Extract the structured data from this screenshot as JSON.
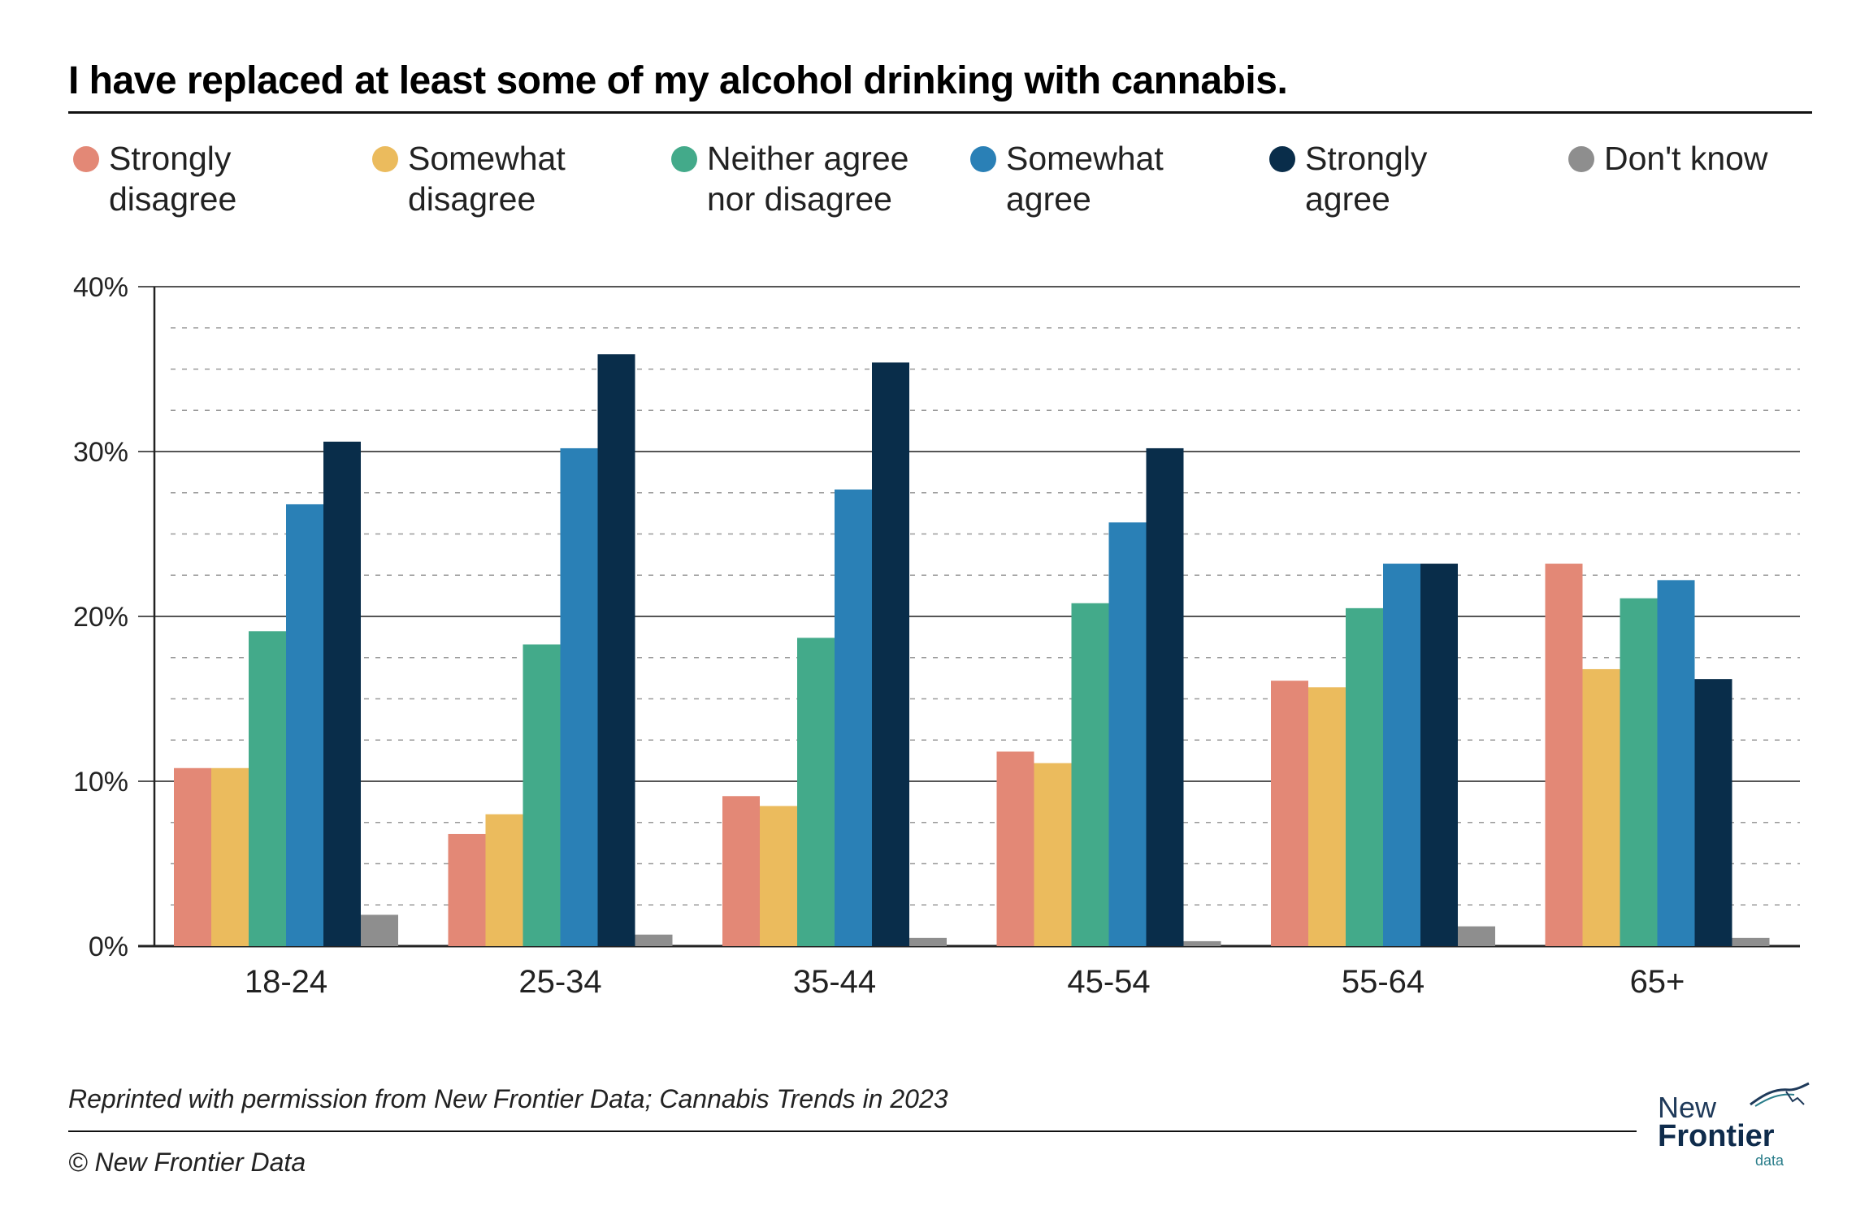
{
  "chart_data": {
    "type": "bar",
    "title": "I have replaced at least some of my alcohol drinking with cannabis.",
    "categories": [
      "18-24",
      "25-34",
      "35-44",
      "45-54",
      "55-64",
      "65+"
    ],
    "series": [
      {
        "name": "Strongly\ndisagree",
        "color": "#e38876",
        "values": [
          10.8,
          6.8,
          9.1,
          11.8,
          16.1,
          23.2
        ]
      },
      {
        "name": "Somewhat\ndisagree",
        "color": "#ebbb5d",
        "values": [
          10.8,
          8.0,
          8.5,
          11.1,
          15.7,
          16.8
        ]
      },
      {
        "name": "Neither agree\nnor disagree",
        "color": "#43aa8a",
        "values": [
          19.1,
          18.3,
          18.7,
          20.8,
          20.5,
          21.1
        ]
      },
      {
        "name": "Somewhat\nagree",
        "color": "#2a80b6",
        "values": [
          26.8,
          30.2,
          27.7,
          25.7,
          23.2,
          22.2
        ]
      },
      {
        "name": "Strongly\nagree",
        "color": "#092d4a",
        "values": [
          30.6,
          35.9,
          35.4,
          30.2,
          23.2,
          16.2
        ]
      },
      {
        "name": "Don't know",
        "color": "#8e8e8e",
        "values": [
          1.9,
          0.7,
          0.5,
          0.3,
          1.2,
          0.5
        ]
      }
    ],
    "yticks": [
      "0%",
      "10%",
      "20%",
      "30%",
      "40%"
    ],
    "ylim": [
      0,
      40
    ],
    "grid": true
  },
  "footer": {
    "source": "Reprinted with permission from New Frontier Data; Cannabis Trends in 2023",
    "copyright": "© New Frontier Data"
  },
  "logo": {
    "line1": "New",
    "line2": "Frontier",
    "line3": "data"
  }
}
